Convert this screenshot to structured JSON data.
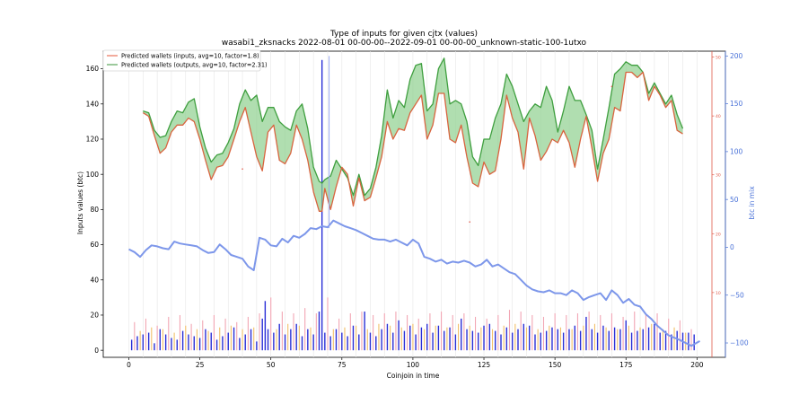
{
  "chart_data": {
    "type": "line",
    "title_line1": "Type of inputs for given cjtx (values)",
    "title_line2": "wasabi1_zksnacks 2022-08-01 00-00-00--2022-09-01 00-00-00_unknown-static-100-1utxo",
    "xlabel": "Coinjoin in time",
    "ylabel": "Inputs values (btc)",
    "y2label": "btc in mix",
    "xlim": [
      -9,
      210
    ],
    "ylim": [
      -4,
      170
    ],
    "y2lim": [
      -115,
      205
    ],
    "y3lim": [
      -1,
      51
    ],
    "x_ticks": [
      0,
      25,
      50,
      75,
      100,
      125,
      150,
      175,
      200
    ],
    "y_ticks": [
      0,
      20,
      40,
      60,
      80,
      100,
      120,
      140,
      160
    ],
    "y2_ticks": [
      -100,
      -50,
      0,
      50,
      100,
      150,
      200
    ],
    "y3_ticks": [
      10,
      20,
      30,
      40,
      50
    ],
    "grid_x": true,
    "legend": {
      "location": "top-left",
      "entries": [
        {
          "label": "Predicted wallets (inputs, avg=10, factor=1.8)",
          "color": "#e8735a"
        },
        {
          "label": "Predicted wallets (outputs, avg=10, factor=2.31)",
          "color": "#5aa55a"
        }
      ]
    },
    "inputs_series": {
      "name": "Predicted wallets (inputs, avg=10, factor=1.8)",
      "color": "#d9643f",
      "x": [
        5,
        7,
        9,
        11,
        13,
        15,
        17,
        19,
        21,
        23,
        25,
        27,
        29,
        31,
        33,
        35,
        37,
        39,
        41,
        43,
        45,
        47,
        49,
        51,
        53,
        55,
        57,
        59,
        61,
        63,
        65,
        67,
        68,
        69,
        71,
        73,
        75,
        77,
        79,
        81,
        83,
        85,
        87,
        89,
        91,
        93,
        95,
        97,
        99,
        101,
        103,
        105,
        107,
        109,
        111,
        113,
        115,
        117,
        119,
        121,
        123,
        125,
        127,
        129,
        131,
        133,
        135,
        137,
        139,
        141,
        143,
        145,
        147,
        149,
        151,
        153,
        155,
        157,
        159,
        161,
        163,
        165,
        167,
        169,
        171,
        173,
        175,
        177,
        179,
        181,
        183,
        185,
        187,
        189,
        191,
        193,
        195
      ],
      "values": [
        135,
        133,
        122,
        112,
        115,
        124,
        128,
        128,
        132,
        130,
        120,
        108,
        97,
        104,
        105,
        110,
        120,
        130,
        138,
        124,
        110,
        102,
        124,
        128,
        108,
        106,
        112,
        128,
        120,
        108,
        90,
        79,
        79,
        92,
        80,
        93,
        104,
        100,
        82,
        98,
        85,
        87,
        98,
        110,
        130,
        120,
        126,
        125,
        135,
        140,
        145,
        120,
        128,
        146,
        146,
        120,
        118,
        128,
        110,
        95,
        93,
        107,
        100,
        102,
        120,
        145,
        132,
        124,
        103,
        132,
        122,
        108,
        113,
        120,
        118,
        125,
        118,
        104,
        120,
        133,
        115,
        96,
        112,
        120,
        138,
        136,
        158,
        158,
        155,
        158,
        142,
        150,
        145,
        138,
        142,
        125,
        123
      ],
      "lower_envelope": true
    },
    "outputs_series": {
      "name": "Predicted wallets (outputs, avg=10, factor=2.31)",
      "color": "#3f9f3f",
      "x": [
        5,
        7,
        9,
        11,
        13,
        15,
        17,
        19,
        21,
        23,
        25,
        27,
        29,
        31,
        33,
        35,
        37,
        39,
        41,
        43,
        45,
        47,
        49,
        51,
        53,
        55,
        57,
        59,
        61,
        63,
        65,
        67,
        68,
        69,
        71,
        73,
        75,
        77,
        79,
        81,
        83,
        85,
        87,
        89,
        91,
        93,
        95,
        97,
        99,
        101,
        103,
        105,
        107,
        109,
        111,
        113,
        115,
        117,
        119,
        121,
        123,
        125,
        127,
        129,
        131,
        133,
        135,
        137,
        139,
        141,
        143,
        145,
        147,
        149,
        151,
        153,
        155,
        157,
        159,
        161,
        163,
        165,
        167,
        169,
        171,
        173,
        175,
        177,
        179,
        181,
        183,
        185,
        187,
        189,
        191,
        193,
        195
      ],
      "values": [
        136,
        135,
        125,
        121,
        122,
        130,
        136,
        135,
        141,
        143,
        127,
        115,
        107,
        111,
        112,
        118,
        126,
        140,
        148,
        142,
        145,
        130,
        138,
        138,
        130,
        127,
        125,
        136,
        140,
        126,
        104,
        96,
        95,
        97,
        99,
        108,
        103,
        98,
        88,
        100,
        88,
        92,
        104,
        122,
        148,
        132,
        142,
        138,
        154,
        162,
        163,
        136,
        140,
        160,
        166,
        140,
        142,
        140,
        130,
        110,
        105,
        120,
        120,
        132,
        140,
        157,
        150,
        140,
        130,
        136,
        140,
        138,
        150,
        142,
        124,
        136,
        150,
        142,
        142,
        134,
        125,
        103,
        120,
        138,
        157,
        160,
        164,
        162,
        162,
        158,
        146,
        152,
        146,
        140,
        145,
        134,
        126
      ]
    },
    "btc_in_mix": {
      "name": "btc in mix",
      "axis": "right",
      "color": "#7d97ea",
      "x": [
        0,
        2,
        4,
        6,
        8,
        10,
        12,
        14,
        16,
        18,
        20,
        22,
        24,
        26,
        28,
        30,
        32,
        34,
        36,
        38,
        40,
        42,
        44,
        46,
        48,
        50,
        52,
        54,
        56,
        58,
        60,
        62,
        64,
        66,
        68,
        70,
        72,
        74,
        76,
        78,
        80,
        82,
        84,
        86,
        88,
        90,
        92,
        94,
        96,
        98,
        100,
        102,
        104,
        106,
        108,
        110,
        112,
        114,
        116,
        118,
        120,
        122,
        124,
        126,
        128,
        130,
        132,
        134,
        136,
        138,
        140,
        142,
        144,
        146,
        148,
        150,
        152,
        154,
        156,
        158,
        160,
        162,
        164,
        166,
        168,
        170,
        172,
        174,
        176,
        178,
        180,
        182,
        184,
        186,
        190,
        194,
        198,
        201
      ],
      "values": [
        -2,
        -5,
        -10,
        -3,
        2,
        1,
        -1,
        -2,
        6,
        4,
        3,
        2,
        1,
        -3,
        -6,
        -5,
        3,
        -2,
        -8,
        -10,
        -12,
        -20,
        -24,
        10,
        8,
        2,
        1,
        9,
        5,
        12,
        10,
        14,
        20,
        19,
        22,
        21,
        28,
        25,
        22,
        20,
        18,
        15,
        12,
        9,
        8,
        8,
        6,
        8,
        5,
        2,
        8,
        4,
        -10,
        -12,
        -15,
        -13,
        -17,
        -15,
        -16,
        -14,
        -16,
        -20,
        -18,
        -13,
        -20,
        -18,
        -22,
        -26,
        -28,
        -34,
        -40,
        -44,
        -46,
        -47,
        -45,
        -48,
        -48,
        -50,
        -45,
        -48,
        -55,
        -52,
        -50,
        -48,
        -55,
        -45,
        -50,
        -58,
        -54,
        -60,
        -62,
        -70,
        -75,
        -82,
        -92,
        -97,
        -103,
        -98
      ],
      "spike": {
        "x": 70.5,
        "values": [
          20,
          200
        ]
      }
    },
    "bars_blue": {
      "axis": "left",
      "color": "#2a2fd6",
      "x": [
        1,
        3,
        5,
        7,
        9,
        11,
        13,
        15,
        17,
        19,
        21,
        23,
        25,
        27,
        29,
        31,
        33,
        35,
        37,
        39,
        41,
        43,
        45,
        47,
        48,
        49,
        51,
        53,
        55,
        57,
        59,
        61,
        63,
        65,
        67,
        68,
        69,
        71,
        73,
        75,
        77,
        79,
        81,
        83,
        85,
        87,
        89,
        91,
        93,
        95,
        97,
        99,
        101,
        103,
        105,
        107,
        109,
        111,
        113,
        115,
        117,
        119,
        121,
        123,
        125,
        127,
        129,
        131,
        133,
        135,
        137,
        139,
        141,
        143,
        145,
        147,
        149,
        151,
        153,
        155,
        157,
        159,
        161,
        163,
        165,
        167,
        169,
        171,
        173,
        175,
        177,
        179,
        181,
        183,
        185,
        187,
        189,
        191,
        193,
        195,
        197,
        199
      ],
      "values": [
        6,
        8,
        9,
        10,
        4,
        12,
        9,
        7,
        6,
        11,
        9,
        8,
        7,
        12,
        10,
        6,
        8,
        10,
        13,
        7,
        9,
        12,
        5,
        18,
        28,
        12,
        10,
        15,
        9,
        12,
        15,
        8,
        12,
        9,
        22,
        165,
        10,
        8,
        12,
        10,
        8,
        14,
        9,
        22,
        10,
        8,
        12,
        15,
        10,
        17,
        11,
        14,
        9,
        13,
        15,
        10,
        14,
        11,
        13,
        9,
        18,
        12,
        11,
        10,
        14,
        15,
        11,
        9,
        13,
        10,
        12,
        15,
        14,
        9,
        10,
        11,
        13,
        12,
        10,
        12,
        14,
        11,
        19,
        12,
        10,
        14,
        11,
        13,
        12,
        17,
        10,
        11,
        12,
        13,
        15,
        10,
        11,
        9,
        11,
        10,
        10,
        9
      ]
    },
    "bars_pink": {
      "axis": "left",
      "color": "#f2a6b4",
      "x": [
        2,
        6,
        10,
        14,
        18,
        22,
        26,
        30,
        34,
        38,
        42,
        46,
        50,
        54,
        58,
        62,
        66,
        70,
        74,
        78,
        82,
        86,
        90,
        94,
        98,
        102,
        106,
        110,
        114,
        118,
        122,
        126,
        130,
        134,
        138,
        142,
        146,
        150,
        154,
        158,
        162,
        166,
        170,
        174,
        178,
        182,
        186,
        190,
        194,
        198
      ],
      "values": [
        16,
        18,
        14,
        19,
        20,
        15,
        17,
        20,
        18,
        16,
        19,
        21,
        30,
        22,
        21,
        24,
        21,
        30,
        18,
        21,
        22,
        20,
        21,
        22,
        20,
        18,
        21,
        22,
        20,
        21,
        19,
        18,
        20,
        23,
        22,
        20,
        19,
        21,
        20,
        21,
        22,
        20,
        21,
        19,
        22,
        20,
        21,
        18,
        17,
        12
      ]
    },
    "bars_orange": {
      "axis": "left",
      "color": "#f2c06a",
      "x": [
        4,
        8,
        12,
        16,
        20,
        24,
        28,
        32,
        36,
        40,
        44,
        52,
        56,
        60,
        64,
        72,
        76,
        80,
        84,
        88,
        92,
        96,
        100,
        104,
        108,
        112,
        116,
        120,
        124,
        128,
        132,
        136,
        140,
        144,
        148,
        152,
        156,
        160,
        164,
        168,
        172,
        176,
        180,
        184,
        188,
        192,
        196
      ],
      "values": [
        11,
        13,
        12,
        10,
        14,
        12,
        11,
        13,
        14,
        12,
        13,
        12,
        15,
        14,
        13,
        12,
        13,
        14,
        12,
        15,
        14,
        13,
        15,
        12,
        14,
        13,
        15,
        14,
        13,
        12,
        14,
        15,
        13,
        12,
        14,
        13,
        12,
        14,
        15,
        13,
        12,
        14,
        13,
        15,
        12,
        13,
        10
      ]
    },
    "small_red_axis_values": {
      "axis": "right-inner",
      "color": "#e05a4a",
      "x": [
        40,
        120,
        170
      ],
      "values": [
        31,
        22,
        45
      ]
    }
  }
}
